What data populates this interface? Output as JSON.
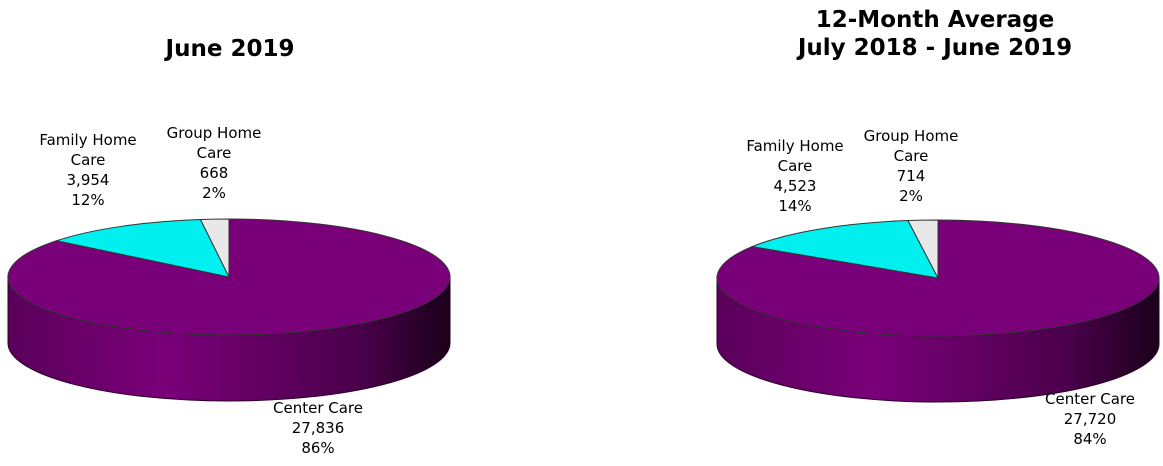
{
  "chart_data": [
    {
      "type": "pie",
      "title": "June 2019",
      "subtitle": "",
      "slices": [
        {
          "label_lines": [
            "Center Care"
          ],
          "value": 27836,
          "value_text": "27,836",
          "percent_text": "86%",
          "color": "#7a0079"
        },
        {
          "label_lines": [
            "Family Home",
            "Care"
          ],
          "value": 3954,
          "value_text": "3,954",
          "percent_text": "12%",
          "color": "#00f0f0"
        },
        {
          "label_lines": [
            "Group Home",
            "Care"
          ],
          "value": 668,
          "value_text": "668",
          "percent_text": "2%",
          "color": "#e8e8e8"
        }
      ]
    },
    {
      "type": "pie",
      "title": "12-Month Average",
      "subtitle": "July 2018 - June 2019",
      "slices": [
        {
          "label_lines": [
            "Center Care"
          ],
          "value": 27720,
          "value_text": "27,720",
          "percent_text": "84%",
          "color": "#7a0079"
        },
        {
          "label_lines": [
            "Family Home",
            "Care"
          ],
          "value": 4523,
          "value_text": "4,523",
          "percent_text": "14%",
          "color": "#00f0f0"
        },
        {
          "label_lines": [
            "Group Home",
            "Care"
          ],
          "value": 714,
          "value_text": "714",
          "percent_text": "2%",
          "color": "#e8e8e8"
        }
      ]
    }
  ]
}
